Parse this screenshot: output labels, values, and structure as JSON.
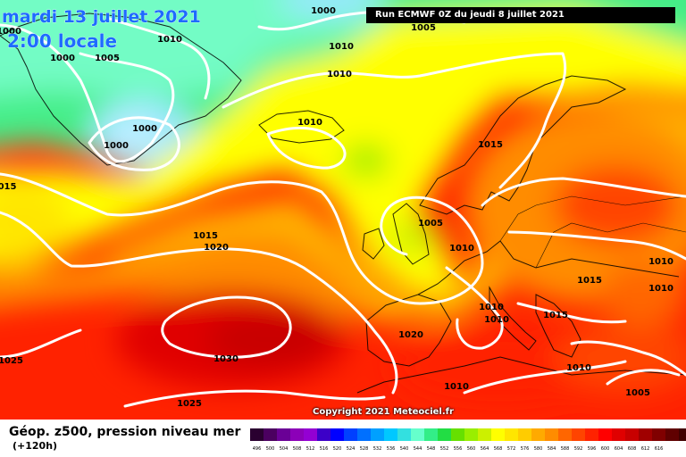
{
  "title": {
    "date": "mardi 13 juillet 2021",
    "time": "2:00 locale",
    "run": "Run ECMWF 0Z du jeudi 8 juillet 2021"
  },
  "footer": {
    "variable": "Géop. z500, pression niveau mer",
    "lead_time": "(+120h)",
    "copyright": "Copyright 2021 Meteociel.fr"
  },
  "colors": {
    "low": "#7fffd4",
    "cyan": "#99e6ff",
    "green": "#22dd44",
    "yellow": "#ffff00",
    "orange": "#ff8c00",
    "red": "#ff0000",
    "dark_red": "#c80000",
    "isobar": "#ffffff",
    "coast": "#000000"
  },
  "pressure_labels": [
    {
      "id": "p1",
      "text": "1000"
    },
    {
      "id": "p2",
      "text": "1005"
    },
    {
      "id": "p3",
      "text": "1010"
    },
    {
      "id": "p4",
      "text": "1000"
    },
    {
      "id": "p5",
      "text": "1005"
    },
    {
      "id": "p6",
      "text": "1000"
    },
    {
      "id": "p7",
      "text": "1000"
    },
    {
      "id": "p8",
      "text": "1010"
    },
    {
      "id": "p9",
      "text": "1010"
    },
    {
      "id": "p10",
      "text": "1000"
    },
    {
      "id": "p11",
      "text": "1015"
    },
    {
      "id": "p12",
      "text": "015"
    },
    {
      "id": "p13",
      "text": "1015"
    },
    {
      "id": "p14",
      "text": "1020"
    },
    {
      "id": "p15",
      "text": "1005"
    },
    {
      "id": "p16",
      "text": "1010"
    },
    {
      "id": "p17",
      "text": "1015"
    },
    {
      "id": "p18",
      "text": "1010"
    },
    {
      "id": "p19",
      "text": "1010"
    },
    {
      "id": "p20",
      "text": "1010"
    },
    {
      "id": "p21",
      "text": "1015"
    },
    {
      "id": "p22",
      "text": "1020"
    },
    {
      "id": "p23",
      "text": "1030"
    },
    {
      "id": "p24",
      "text": "1025"
    },
    {
      "id": "p25",
      "text": "1025"
    },
    {
      "id": "p26",
      "text": "1010"
    },
    {
      "id": "p27",
      "text": "1010"
    },
    {
      "id": "p28",
      "text": "1005"
    },
    {
      "id": "p29",
      "text": "1010"
    },
    {
      "id": "p30",
      "text": "1010"
    }
  ],
  "scale": {
    "colors": [
      "#2a0030",
      "#4b0060",
      "#6a0096",
      "#8c00b8",
      "#9400d3",
      "#3c00c8",
      "#0000ff",
      "#0040ff",
      "#0070ff",
      "#00a0ff",
      "#00c8ff",
      "#33e0e0",
      "#66ffcc",
      "#33ee88",
      "#22dd44",
      "#66e000",
      "#99ee00",
      "#ccf000",
      "#ffff00",
      "#ffe600",
      "#ffcc00",
      "#ffaa00",
      "#ff8c00",
      "#ff6600",
      "#ff4400",
      "#ff2200",
      "#ff0000",
      "#e00000",
      "#c80000",
      "#a00000",
      "#800000",
      "#600000",
      "#400000",
      "#200000"
    ],
    "ticks": [
      "496",
      "500",
      "504",
      "508",
      "512",
      "516",
      "520",
      "524",
      "528",
      "532",
      "536",
      "540",
      "544",
      "548",
      "552",
      "556",
      "560",
      "564",
      "568",
      "572",
      "576",
      "580",
      "584",
      "588",
      "592",
      "596",
      "600",
      "604",
      "608",
      "612",
      "616"
    ]
  }
}
